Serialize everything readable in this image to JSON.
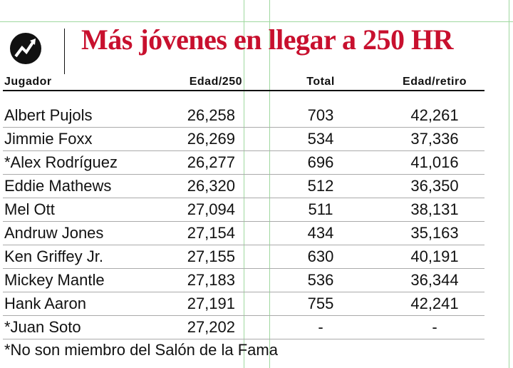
{
  "title": "Más jóvenes en llegar a 250 HR",
  "table": {
    "headers": [
      "Jugador",
      "Edad/250",
      "Total",
      "Edad/retiro"
    ],
    "rows": [
      [
        "Albert Pujols",
        "26,258",
        "703",
        "42,261"
      ],
      [
        "Jimmie Foxx",
        "26,269",
        "534",
        "37,336"
      ],
      [
        "*Alex Rodríguez",
        "26,277",
        "696",
        "41,016"
      ],
      [
        "Eddie Mathews",
        "26,320",
        "512",
        "36,350"
      ],
      [
        "Mel Ott",
        "27,094",
        "511",
        "38,131"
      ],
      [
        "Andruw Jones",
        "27,154",
        "434",
        "35,163"
      ],
      [
        "Ken Griffey Jr.",
        "27,155",
        "630",
        "40,191"
      ],
      [
        "Mickey Mantle",
        "27,183",
        "536",
        "36,344"
      ],
      [
        "Hank Aaron",
        "27,191",
        "755",
        "42,241"
      ],
      [
        "*Juan Soto",
        "27,202",
        "-",
        "-"
      ]
    ]
  },
  "footnote": "*No son miembro del Salón de la Fama"
}
